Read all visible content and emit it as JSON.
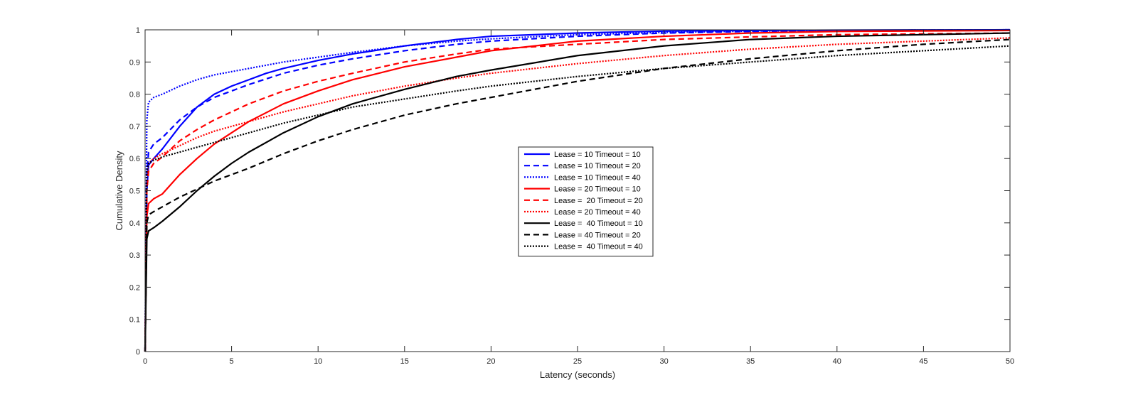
{
  "chart_data": {
    "type": "line",
    "title": "",
    "xlabel": "Latency (seconds)",
    "ylabel": "Cumulative Density",
    "xlim": [
      0,
      50
    ],
    "ylim": [
      0,
      1
    ],
    "xticks": [
      0,
      5,
      10,
      15,
      20,
      25,
      30,
      35,
      40,
      45,
      50
    ],
    "yticks": [
      0,
      0.1,
      0.2,
      0.3,
      0.4,
      0.5,
      0.6,
      0.7,
      0.8,
      0.9,
      1
    ],
    "grid": false,
    "legend_position": "center",
    "series": [
      {
        "name": "Lease = 10 Timeout = 10",
        "color": "#0000ff",
        "style": "solid",
        "points": [
          [
            0,
            0
          ],
          [
            0.1,
            0.5
          ],
          [
            0.2,
            0.58
          ],
          [
            0.5,
            0.6
          ],
          [
            1,
            0.63
          ],
          [
            2,
            0.7
          ],
          [
            3,
            0.76
          ],
          [
            4,
            0.8
          ],
          [
            5,
            0.825
          ],
          [
            6,
            0.845
          ],
          [
            7,
            0.865
          ],
          [
            8,
            0.88
          ],
          [
            10,
            0.905
          ],
          [
            12,
            0.925
          ],
          [
            15,
            0.95
          ],
          [
            18,
            0.97
          ],
          [
            20,
            0.98
          ],
          [
            25,
            0.99
          ],
          [
            30,
            0.996
          ],
          [
            35,
            0.998
          ],
          [
            40,
            0.999
          ],
          [
            50,
            1.0
          ]
        ]
      },
      {
        "name": "Lease = 10 Timeout = 20",
        "color": "#0000ff",
        "style": "dashed",
        "points": [
          [
            0,
            0
          ],
          [
            0.1,
            0.55
          ],
          [
            0.2,
            0.62
          ],
          [
            0.5,
            0.645
          ],
          [
            1,
            0.665
          ],
          [
            2,
            0.72
          ],
          [
            3,
            0.76
          ],
          [
            4,
            0.79
          ],
          [
            5,
            0.81
          ],
          [
            6,
            0.83
          ],
          [
            8,
            0.865
          ],
          [
            10,
            0.89
          ],
          [
            12,
            0.91
          ],
          [
            15,
            0.935
          ],
          [
            18,
            0.955
          ],
          [
            20,
            0.965
          ],
          [
            25,
            0.98
          ],
          [
            30,
            0.99
          ],
          [
            35,
            0.995
          ],
          [
            40,
            0.998
          ],
          [
            50,
            1.0
          ]
        ]
      },
      {
        "name": "Lease = 10 Timeout = 40",
        "color": "#0000ff",
        "style": "dotted",
        "points": [
          [
            0,
            0
          ],
          [
            0.1,
            0.72
          ],
          [
            0.2,
            0.775
          ],
          [
            0.5,
            0.79
          ],
          [
            1,
            0.8
          ],
          [
            2,
            0.825
          ],
          [
            3,
            0.845
          ],
          [
            4,
            0.86
          ],
          [
            5,
            0.87
          ],
          [
            6,
            0.88
          ],
          [
            8,
            0.9
          ],
          [
            10,
            0.915
          ],
          [
            12,
            0.93
          ],
          [
            15,
            0.95
          ],
          [
            18,
            0.965
          ],
          [
            20,
            0.972
          ],
          [
            25,
            0.985
          ],
          [
            30,
            0.992
          ],
          [
            35,
            0.996
          ],
          [
            40,
            0.998
          ],
          [
            50,
            1.0
          ]
        ]
      },
      {
        "name": "Lease = 20 Timeout = 10",
        "color": "#ff0000",
        "style": "solid",
        "points": [
          [
            0,
            0
          ],
          [
            0.1,
            0.42
          ],
          [
            0.2,
            0.46
          ],
          [
            0.5,
            0.475
          ],
          [
            1,
            0.49
          ],
          [
            2,
            0.55
          ],
          [
            3,
            0.6
          ],
          [
            4,
            0.645
          ],
          [
            5,
            0.68
          ],
          [
            6,
            0.715
          ],
          [
            8,
            0.77
          ],
          [
            10,
            0.81
          ],
          [
            12,
            0.845
          ],
          [
            15,
            0.885
          ],
          [
            18,
            0.915
          ],
          [
            20,
            0.935
          ],
          [
            25,
            0.965
          ],
          [
            30,
            0.98
          ],
          [
            35,
            0.99
          ],
          [
            40,
            0.995
          ],
          [
            50,
            0.998
          ]
        ]
      },
      {
        "name": "Lease =  20 Timeout = 20",
        "color": "#ff0000",
        "style": "dashed",
        "points": [
          [
            0,
            0
          ],
          [
            0.1,
            0.5
          ],
          [
            0.2,
            0.56
          ],
          [
            0.5,
            0.585
          ],
          [
            1,
            0.605
          ],
          [
            2,
            0.655
          ],
          [
            3,
            0.69
          ],
          [
            4,
            0.72
          ],
          [
            5,
            0.745
          ],
          [
            6,
            0.77
          ],
          [
            8,
            0.81
          ],
          [
            10,
            0.84
          ],
          [
            12,
            0.865
          ],
          [
            15,
            0.9
          ],
          [
            18,
            0.925
          ],
          [
            20,
            0.94
          ],
          [
            25,
            0.955
          ],
          [
            30,
            0.97
          ],
          [
            35,
            0.978
          ],
          [
            40,
            0.985
          ],
          [
            50,
            0.99
          ]
        ]
      },
      {
        "name": "Lease = 20 Timeout = 40",
        "color": "#ff0000",
        "style": "dotted",
        "points": [
          [
            0,
            0
          ],
          [
            0.1,
            0.55
          ],
          [
            0.2,
            0.585
          ],
          [
            0.5,
            0.6
          ],
          [
            1,
            0.615
          ],
          [
            2,
            0.64
          ],
          [
            3,
            0.665
          ],
          [
            4,
            0.685
          ],
          [
            5,
            0.7
          ],
          [
            6,
            0.715
          ],
          [
            8,
            0.745
          ],
          [
            10,
            0.77
          ],
          [
            12,
            0.795
          ],
          [
            15,
            0.825
          ],
          [
            18,
            0.85
          ],
          [
            20,
            0.865
          ],
          [
            25,
            0.895
          ],
          [
            30,
            0.92
          ],
          [
            35,
            0.94
          ],
          [
            40,
            0.955
          ],
          [
            45,
            0.965
          ],
          [
            50,
            0.975
          ]
        ]
      },
      {
        "name": "Lease =  40 Timeout = 10",
        "color": "#000000",
        "style": "solid",
        "points": [
          [
            0,
            0
          ],
          [
            0.1,
            0.35
          ],
          [
            0.2,
            0.375
          ],
          [
            0.5,
            0.385
          ],
          [
            1,
            0.405
          ],
          [
            2,
            0.45
          ],
          [
            3,
            0.5
          ],
          [
            4,
            0.545
          ],
          [
            5,
            0.585
          ],
          [
            6,
            0.62
          ],
          [
            8,
            0.68
          ],
          [
            10,
            0.73
          ],
          [
            12,
            0.77
          ],
          [
            15,
            0.815
          ],
          [
            18,
            0.855
          ],
          [
            20,
            0.875
          ],
          [
            25,
            0.92
          ],
          [
            30,
            0.95
          ],
          [
            35,
            0.97
          ],
          [
            40,
            0.98
          ],
          [
            45,
            0.985
          ],
          [
            50,
            0.99
          ]
        ]
      },
      {
        "name": "Lease = 40 Timeout = 20",
        "color": "#000000",
        "style": "dashed",
        "points": [
          [
            0,
            0
          ],
          [
            0.1,
            0.4
          ],
          [
            0.2,
            0.425
          ],
          [
            0.5,
            0.435
          ],
          [
            1,
            0.45
          ],
          [
            2,
            0.48
          ],
          [
            3,
            0.505
          ],
          [
            4,
            0.53
          ],
          [
            5,
            0.55
          ],
          [
            6,
            0.57
          ],
          [
            8,
            0.615
          ],
          [
            10,
            0.655
          ],
          [
            12,
            0.69
          ],
          [
            15,
            0.735
          ],
          [
            18,
            0.77
          ],
          [
            20,
            0.79
          ],
          [
            25,
            0.84
          ],
          [
            30,
            0.88
          ],
          [
            35,
            0.91
          ],
          [
            40,
            0.935
          ],
          [
            45,
            0.955
          ],
          [
            50,
            0.97
          ]
        ]
      },
      {
        "name": "Lease =  40 Timeout = 40",
        "color": "#000000",
        "style": "dotted",
        "points": [
          [
            0,
            0
          ],
          [
            0.1,
            0.56
          ],
          [
            0.2,
            0.585
          ],
          [
            0.5,
            0.595
          ],
          [
            1,
            0.605
          ],
          [
            2,
            0.62
          ],
          [
            3,
            0.635
          ],
          [
            4,
            0.65
          ],
          [
            5,
            0.665
          ],
          [
            6,
            0.68
          ],
          [
            8,
            0.71
          ],
          [
            10,
            0.735
          ],
          [
            12,
            0.76
          ],
          [
            15,
            0.785
          ],
          [
            18,
            0.81
          ],
          [
            20,
            0.825
          ],
          [
            25,
            0.855
          ],
          [
            30,
            0.88
          ],
          [
            35,
            0.9
          ],
          [
            40,
            0.92
          ],
          [
            45,
            0.935
          ],
          [
            50,
            0.95
          ]
        ]
      }
    ]
  }
}
